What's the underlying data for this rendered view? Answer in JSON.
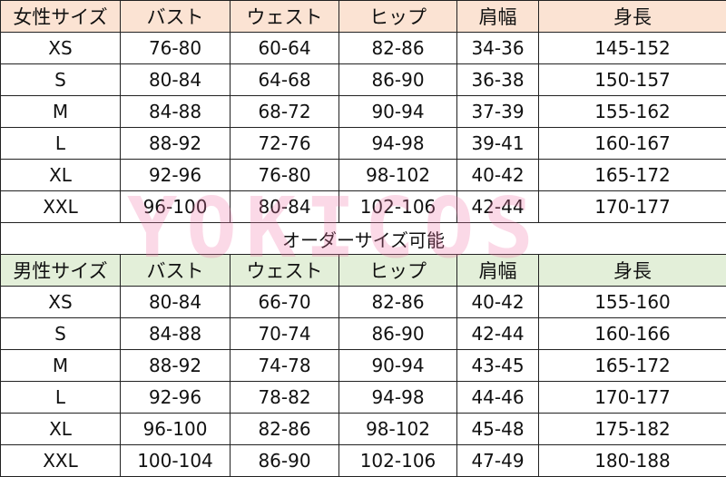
{
  "women": {
    "header": [
      "女性サイズ",
      "バスト",
      "ウェスト",
      "ヒップ",
      "肩幅",
      "身長"
    ],
    "rows": [
      [
        "XS",
        "76-80",
        "60-64",
        "82-86",
        "34-36",
        "145-152"
      ],
      [
        "S",
        "80-84",
        "64-68",
        "86-90",
        "36-38",
        "150-157"
      ],
      [
        "M",
        "84-88",
        "68-72",
        "90-94",
        "37-39",
        "155-162"
      ],
      [
        "L",
        "88-92",
        "72-76",
        "94-98",
        "39-41",
        "160-167"
      ],
      [
        "XL",
        "92-96",
        "76-80",
        "98-102",
        "40-42",
        "165-172"
      ],
      [
        "XXL",
        "96-100",
        "80-84",
        "102-106",
        "42-44",
        "170-177"
      ]
    ]
  },
  "note": "オーダーサイズ可能",
  "men": {
    "header": [
      "男性サイズ",
      "バスト",
      "ウェスト",
      "ヒップ",
      "肩幅",
      "身長"
    ],
    "rows": [
      [
        "XS",
        "80-84",
        "66-70",
        "82-86",
        "40-42",
        "155-160"
      ],
      [
        "S",
        "84-88",
        "70-74",
        "86-90",
        "42-44",
        "160-166"
      ],
      [
        "M",
        "88-92",
        "74-78",
        "90-94",
        "43-45",
        "165-172"
      ],
      [
        "L",
        "92-96",
        "78-82",
        "94-98",
        "44-46",
        "170-177"
      ],
      [
        "XL",
        "96-100",
        "82-86",
        "98-102",
        "45-48",
        "175-182"
      ],
      [
        "XXL",
        "100-104",
        "86-90",
        "102-106",
        "47-49",
        "180-188"
      ]
    ]
  },
  "watermark": "YOKICOS",
  "colors": {
    "women_header": "#fbe3d3",
    "men_header": "#e3efd9"
  }
}
